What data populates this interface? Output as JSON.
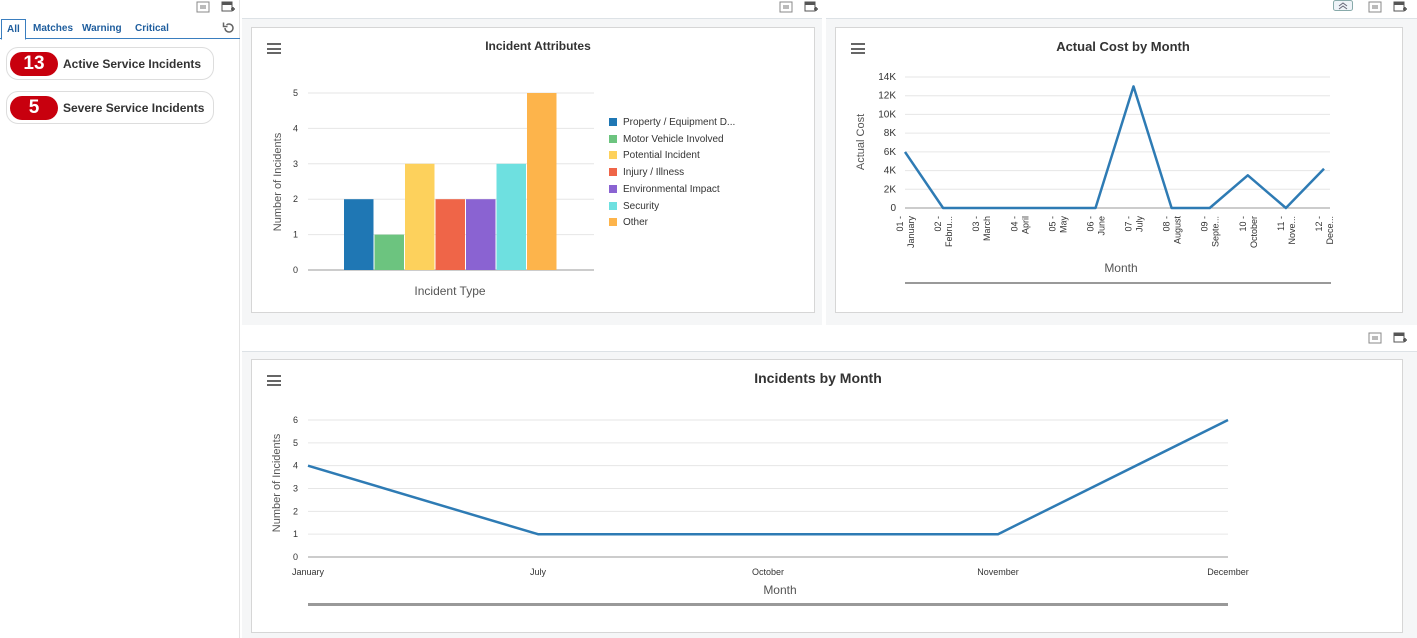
{
  "filter_tabs": [
    "All",
    "Matches",
    "Warning",
    "Critical"
  ],
  "kpis": [
    {
      "count": "13",
      "label": "Active Service Incidents"
    },
    {
      "count": "5",
      "label": "Severe Service Incidents"
    }
  ],
  "icons": {
    "reset": "refresh-icon",
    "expand": "expand-icon",
    "add": "add-card-icon",
    "collapse": "collapse-up-icon",
    "menu": "hamburger-menu-icon"
  },
  "colors": {
    "accent": "#1f5e9e",
    "badge": "#c8000e",
    "line": "#2e7bb4"
  },
  "chart_data": [
    {
      "type": "bar",
      "title": "Incident Attributes",
      "xlabel": "Incident Type",
      "ylabel": "Number of Incidents",
      "ylim": [
        0,
        5
      ],
      "yticks": [
        "0",
        "1",
        "2",
        "3",
        "4",
        "5"
      ],
      "legend_position": "right",
      "series": [
        {
          "name": "Property / Equipment D...",
          "value": 2,
          "color": "#1f77b4"
        },
        {
          "name": "Motor Vehicle Involved",
          "value": 1,
          "color": "#6cc47f"
        },
        {
          "name": "Potential Incident",
          "value": 3,
          "color": "#fdd15c"
        },
        {
          "name": "Injury / Illness",
          "value": 2,
          "color": "#ef6548"
        },
        {
          "name": "Environmental Impact",
          "value": 2,
          "color": "#8a63d2"
        },
        {
          "name": "Security",
          "value": 3,
          "color": "#6ee0e0"
        },
        {
          "name": "Other",
          "value": 5,
          "color": "#fdb44b"
        }
      ]
    },
    {
      "type": "line",
      "title": "Actual Cost by Month",
      "xlabel": "Month",
      "ylabel": "Actual Cost",
      "ylim": [
        0,
        14000
      ],
      "yticks": [
        "0",
        "2K",
        "4K",
        "6K",
        "8K",
        "10K",
        "12K",
        "14K"
      ],
      "categories": [
        [
          "01 -",
          "January"
        ],
        [
          "02 -",
          "Febru..."
        ],
        [
          "03 -",
          "March"
        ],
        [
          "04 -",
          "April"
        ],
        [
          "05 -",
          "May"
        ],
        [
          "06 -",
          "June"
        ],
        [
          "07 -",
          "July"
        ],
        [
          "08 -",
          "August"
        ],
        [
          "09 -",
          "Septe..."
        ],
        [
          "10 -",
          "October"
        ],
        [
          "11 -",
          "Nove..."
        ],
        [
          "12 -",
          "Dece..."
        ]
      ],
      "values": [
        6000,
        0,
        0,
        0,
        0,
        0,
        13000,
        0,
        0,
        3500,
        0,
        4200
      ]
    },
    {
      "type": "line",
      "title": "Incidents by Month",
      "xlabel": "Month",
      "ylabel": "Number of Incidents",
      "ylim": [
        0,
        6
      ],
      "yticks": [
        "0",
        "1",
        "2",
        "3",
        "4",
        "5",
        "6"
      ],
      "categories": [
        "January",
        "July",
        "October",
        "November",
        "December"
      ],
      "values": [
        4,
        1,
        1,
        1,
        6
      ]
    }
  ]
}
